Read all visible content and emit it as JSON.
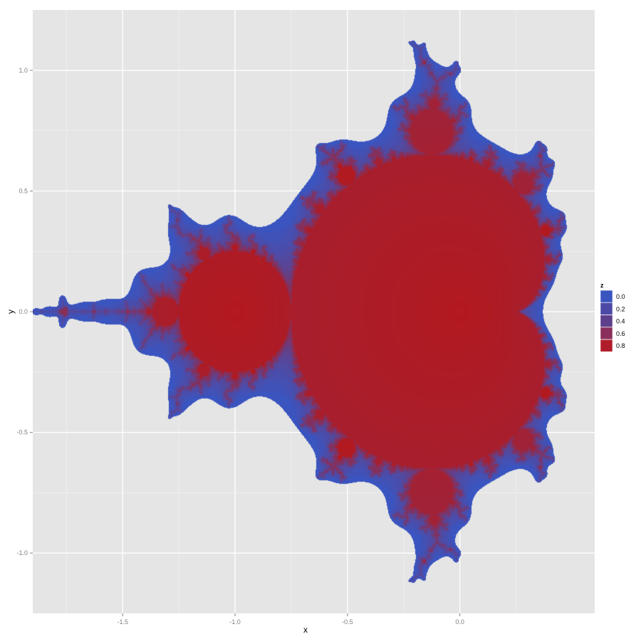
{
  "chart_data": {
    "type": "heatmap",
    "title": "",
    "xlabel": "x",
    "ylabel": "y",
    "xlim": [
      -1.9,
      0.6
    ],
    "ylim": [
      -1.25,
      1.25
    ],
    "x_ticks": [
      {
        "value": -1.5,
        "label": "-1.5"
      },
      {
        "value": -1.0,
        "label": "-1.0"
      },
      {
        "value": -0.5,
        "label": "-0.5"
      },
      {
        "value": 0.0,
        "label": "0.0"
      }
    ],
    "y_ticks": [
      {
        "value": 1.0,
        "label": "1.0"
      },
      {
        "value": 0.5,
        "label": "0.5"
      },
      {
        "value": 0.0,
        "label": "0.0"
      },
      {
        "value": -0.5,
        "label": "-0.5"
      },
      {
        "value": -1.0,
        "label": "-1.0"
      }
    ],
    "grid": true,
    "legend": {
      "title": "z",
      "position": "right",
      "entries": [
        {
          "label": "0.0",
          "color": "#3a55c0"
        },
        {
          "label": "0.2",
          "color": "#4c4aa6"
        },
        {
          "label": "0.4",
          "color": "#5e3f8b"
        },
        {
          "label": "0.6",
          "color": "#8a2f5c"
        },
        {
          "label": "0.8",
          "color": "#b01d2a"
        }
      ]
    },
    "z_range": [
      0,
      1
    ],
    "color_low": "#3a55c0",
    "color_high": "#b3191e",
    "description_of_field": "escape-time fraction over the complex plane (Mandelbrot set)"
  }
}
